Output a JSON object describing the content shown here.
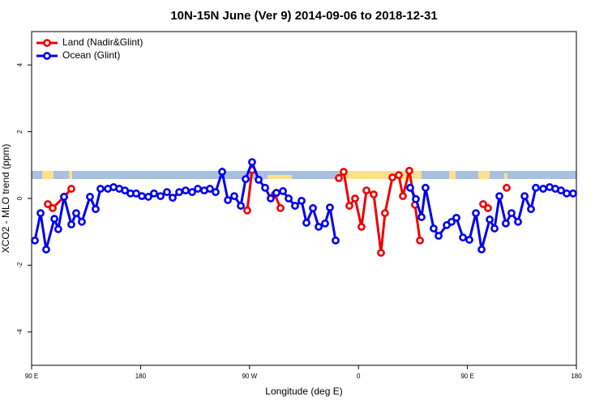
{
  "chart_data": {
    "type": "line",
    "title": "10N-15N June (Ver 9)   2014-09-06 to 2018-12-31",
    "x_label": "Longitude (deg E)",
    "y_label": "XCO2 - MLO trend (ppm)",
    "xlim": [
      90,
      540
    ],
    "ylim": [
      -5,
      5
    ],
    "xticks": [
      {
        "value": 90,
        "label": "90 E"
      },
      {
        "value": 180,
        "label": "180"
      },
      {
        "value": 270,
        "label": "90 W"
      },
      {
        "value": 360,
        "label": "0"
      },
      {
        "value": 450,
        "label": "90 E"
      },
      {
        "value": 540,
        "label": "180"
      }
    ],
    "yticks": [
      4,
      2,
      0,
      -2,
      -4
    ],
    "legend": "top-left",
    "series": [
      {
        "name": "Land (Nadir&Glint)",
        "color": "#ee0000",
        "x": [
          103.4,
          107.4,
          116.8,
          122.8,
          200,
          268.1,
          272.1,
          280,
          290.9,
          295.6,
          320,
          343.8,
          347.8,
          352.5,
          357.2,
          362.5,
          366.6,
          372.6,
          378.6,
          381.9,
          388,
          393.3,
          396.7,
          402,
          406.7,
          410.8,
          440,
          463,
          467,
          475,
          482.4
        ],
        "values": [
          -0.17,
          -0.29,
          0.05,
          0.29,
          null,
          -0.36,
          0.85,
          null,
          0.12,
          -0.29,
          null,
          0.61,
          0.8,
          -0.22,
          0,
          -0.85,
          0.24,
          0.12,
          -1.63,
          -0.44,
          0.63,
          0.7,
          0.07,
          0.83,
          -0.19,
          -1.26,
          null,
          -0.17,
          -0.29,
          null,
          0.32
        ]
      },
      {
        "name": "Ocean (Glint)",
        "color": "#0000ee",
        "x": [
          92.7,
          97.4,
          102,
          108.8,
          112,
          116.8,
          122.8,
          126.8,
          131.5,
          138.2,
          142.9,
          146.9,
          153,
          157.7,
          162.4,
          167.1,
          171.7,
          176.4,
          181.1,
          186.4,
          191.1,
          196.5,
          201.8,
          206.5,
          211.9,
          217.2,
          222.6,
          227.3,
          232.6,
          237.3,
          242,
          247.4,
          252.1,
          257.4,
          262.8,
          266.8,
          272.1,
          277.5,
          282.9,
          287.5,
          292.2,
          297.6,
          302.3,
          307.6,
          313,
          317,
          322.4,
          327.1,
          332.4,
          336.4,
          341.1,
          370,
          402.7,
          407.4,
          412.1,
          415.4,
          422.1,
          426.2,
          432.9,
          436.9,
          440.9,
          446.3,
          451.6,
          457,
          461.7,
          468.4,
          472.4,
          476.4,
          481.7,
          486.4,
          491.8,
          497.2,
          502.5,
          506.5,
          512.6,
          517.9,
          522.6,
          527.3,
          532,
          537.3
        ],
        "values": [
          -1.26,
          -0.44,
          -1.53,
          -0.61,
          -0.92,
          0.05,
          -0.78,
          -0.44,
          -0.7,
          0.05,
          -0.32,
          0.29,
          0.29,
          0.34,
          0.29,
          0.24,
          0.15,
          0.15,
          0.07,
          0.05,
          0.15,
          0.07,
          0.19,
          0.02,
          0.19,
          0.24,
          0.19,
          0.29,
          0.24,
          0.29,
          0.19,
          0.8,
          -0.05,
          0.07,
          -0.22,
          0.58,
          1.09,
          0.56,
          0.32,
          0,
          0.17,
          0.22,
          0,
          -0.22,
          -0.07,
          -0.73,
          -0.29,
          -0.85,
          -0.75,
          -0.27,
          -1.26,
          null,
          0.32,
          -0.02,
          -0.56,
          0.32,
          -0.9,
          -1.12,
          -0.8,
          -0.7,
          -0.58,
          -1.17,
          -1.24,
          -0.44,
          -1.53,
          -0.63,
          -0.9,
          0.07,
          -0.75,
          -0.44,
          -0.7,
          0.07,
          -0.32,
          0.32,
          0.29,
          0.34,
          0.29,
          0.24,
          0.15,
          0.15
        ]
      }
    ]
  }
}
